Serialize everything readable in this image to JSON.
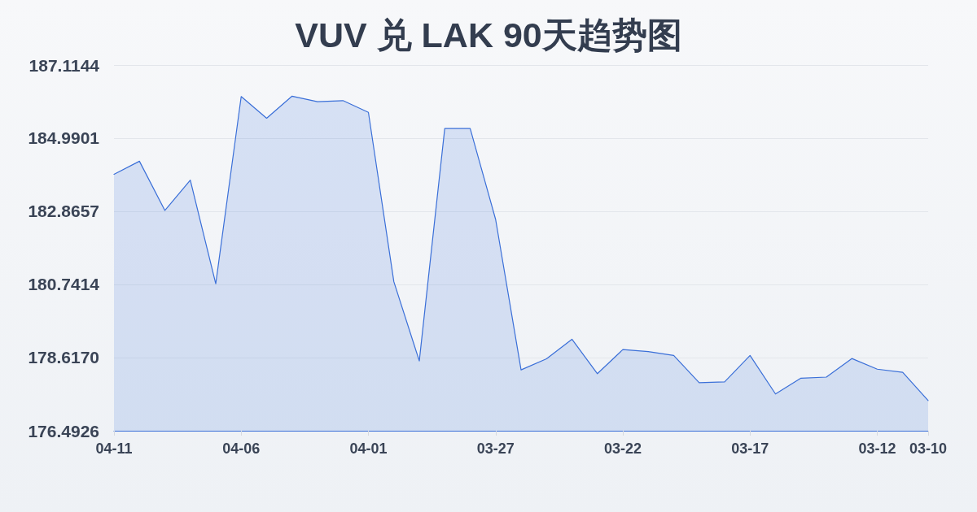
{
  "chart_data": {
    "type": "area",
    "title": "VUV 兑 LAK 90天趋势图",
    "categories": [
      "04-11",
      null,
      null,
      null,
      null,
      "04-06",
      null,
      null,
      null,
      null,
      "04-01",
      null,
      null,
      null,
      null,
      "03-27",
      null,
      null,
      null,
      null,
      "03-22",
      null,
      null,
      null,
      null,
      "03-17",
      null,
      null,
      null,
      null,
      "03-12",
      null,
      "03-10"
    ],
    "values": [
      183.94,
      184.32,
      182.89,
      183.77,
      180.76,
      186.2,
      185.57,
      186.21,
      186.05,
      186.08,
      185.74,
      180.82,
      178.52,
      185.27,
      185.27,
      182.63,
      178.26,
      178.58,
      179.15,
      178.15,
      178.85,
      178.79,
      178.68,
      177.89,
      177.91,
      178.68,
      177.56,
      178.02,
      178.05,
      178.59,
      178.28,
      178.19,
      177.37
    ],
    "color": "#3a6fd8",
    "ylim": [
      176.4926,
      187.1144
    ],
    "yticks": [
      176.4926,
      {
        "value": 178.617,
        "label": "178.6170"
      },
      180.7414,
      182.8657,
      184.9901,
      187.1144
    ],
    "grid": "y",
    "marker": "none"
  }
}
